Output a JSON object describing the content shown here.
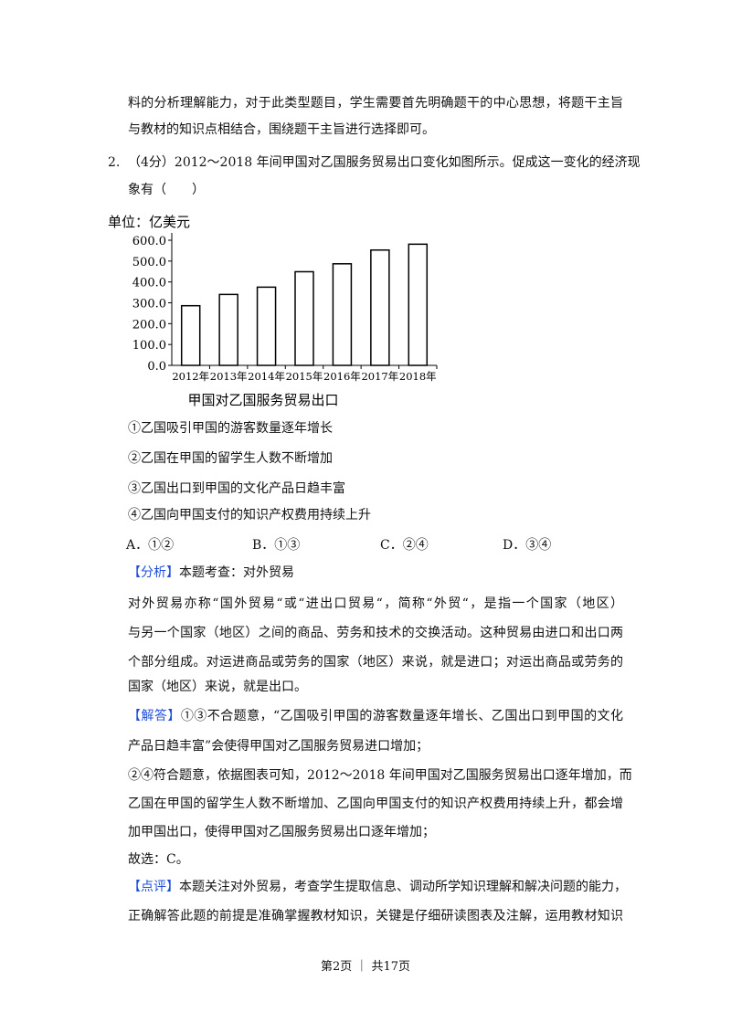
{
  "intro_lines": [
    "料的分析理解能力，对于此类型题目，学生需要首先明确题干的中心思想，将题干主旨",
    "与教材的知识点相结合，围绕题干主旨进行选择即可。"
  ],
  "question": {
    "number": "2.",
    "stem_lines": [
      "（4分）2012～2018 年间甲国对乙国服务贸易出口变化如图所示。促成这一变化的经济现",
      "象有（　　）"
    ],
    "statements": [
      "①乙国吸引甲国的游客数量逐年增长",
      "②乙国在甲国的留学生人数不断增加",
      "③乙国出口到甲国的文化产品日趋丰富",
      "④乙国向甲国支付的知识产权费用持续上升"
    ],
    "options": [
      "A．①②",
      "B．①③",
      "C．②④",
      "D．③④"
    ]
  },
  "chart_data": {
    "type": "bar",
    "unit_label": "单位：亿美元",
    "xlabel": "甲国对乙国服务贸易出口",
    "categories": [
      "2012年",
      "2013年",
      "2014年",
      "2015年",
      "2016年",
      "2017年",
      "2018年"
    ],
    "values": [
      286,
      340,
      375,
      449,
      487,
      553,
      581
    ],
    "yticks": [
      "0.0",
      "100.0",
      "200.0",
      "300.0",
      "400.0",
      "500.0",
      "600.0"
    ],
    "ylim": [
      0,
      600
    ],
    "grid": false,
    "bar_fill": "#ffffff",
    "bar_stroke": "#000000"
  },
  "analysis": {
    "label": "【分析】",
    "title": "本题考查：对外贸易",
    "lines": [
      "对外贸易亦称“国外贸易“或“进出口贸易“，简称“外贸“，是指一个国家（地区）",
      "与另一个国家（地区）之间的商品、劳务和技术的交换活动。这种贸易由进口和出口两",
      "个部分组成。对运进商品或劳务的国家（地区）来说，就是进口；对运出商品或劳务的",
      "国家（地区）来说，就是出口。"
    ]
  },
  "answer": {
    "label": "【解答】",
    "first": "①③不合题意，“乙国吸引甲国的游客数量逐年增长、乙国出口到甲国的文化",
    "lines": [
      "产品日趋丰富”会使得甲国对乙国服务贸易进口增加；",
      "②④符合题意，依据图表可知，2012～2018 年间甲国对乙国服务贸易出口逐年增加，而",
      "乙国在甲国的留学生人数不断增加、乙国向甲国支付的知识产权费用持续上升，都会增",
      "加甲国出口，使得甲国对乙国服务贸易出口逐年增加；",
      "故选：C。"
    ]
  },
  "comment": {
    "label": "【点评】",
    "first": "本题关注对外贸易，考查学生提取信息、调动所学知识理解和解决问题的能力，",
    "lines": [
      "正确解答此题的前提是准确掌握教材知识，关键是仔细研读图表及注解，运用教材知识"
    ]
  },
  "footer": "第2页 ｜ 共17页",
  "colors": {
    "label": "#1f4fd8"
  }
}
